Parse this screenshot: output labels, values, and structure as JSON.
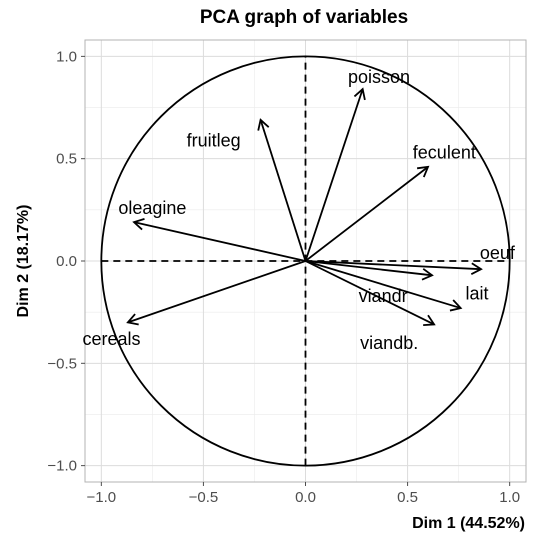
{
  "chart_data": {
    "type": "scatter",
    "subtype": "pca-correlation-circle",
    "title": "PCA graph of variables",
    "xlabel": "Dim 1 (44.52%)",
    "ylabel": "Dim 2 (18.17%)",
    "xlim": [
      -1.08,
      1.08
    ],
    "ylim": [
      -1.08,
      1.08
    ],
    "x_ticks": [
      -1.0,
      -0.5,
      0.0,
      0.5,
      1.0
    ],
    "x_tick_labels": [
      "−1.0",
      "−0.5",
      "0.0",
      "0.5",
      "1.0"
    ],
    "y_ticks": [
      -1.0,
      -0.5,
      0.0,
      0.5,
      1.0
    ],
    "y_tick_labels": [
      "−1.0",
      "−0.5",
      "0.0",
      "0.5",
      "1.0"
    ],
    "grid": true,
    "unit_circle": true,
    "variables": [
      {
        "name": "poisson",
        "x": 0.28,
        "y": 0.84,
        "label_x": 0.36,
        "label_y": 0.9
      },
      {
        "name": "fruitleg",
        "x": -0.22,
        "y": 0.69,
        "label_x": -0.45,
        "label_y": 0.59
      },
      {
        "name": "feculent",
        "x": 0.6,
        "y": 0.46,
        "label_x": 0.68,
        "label_y": 0.53
      },
      {
        "name": "oleagine",
        "x": -0.84,
        "y": 0.19,
        "label_x": -0.75,
        "label_y": 0.26
      },
      {
        "name": "oeuf",
        "x": 0.86,
        "y": -0.04,
        "label_x": 0.94,
        "label_y": 0.04
      },
      {
        "name": "viandr",
        "x": 0.62,
        "y": -0.07,
        "label_x": 0.38,
        "label_y": -0.17
      },
      {
        "name": "lait",
        "x": 0.76,
        "y": -0.23,
        "label_x": 0.84,
        "label_y": -0.16
      },
      {
        "name": "viandb.",
        "x": 0.63,
        "y": -0.31,
        "label_x": 0.41,
        "label_y": -0.4
      },
      {
        "name": "cereals",
        "x": -0.87,
        "y": -0.3,
        "label_x": -0.95,
        "label_y": -0.38
      }
    ]
  }
}
